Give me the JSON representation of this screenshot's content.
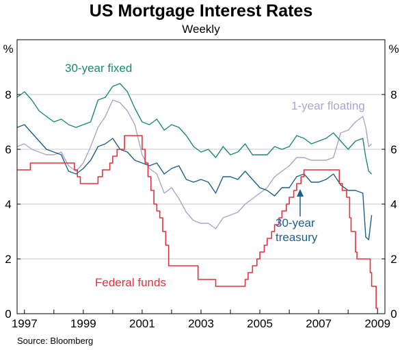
{
  "title": "US Mortgage Interest Rates",
  "subtitle": "Weekly",
  "source": "Source: Bloomberg",
  "chart_data": {
    "type": "line",
    "title": "US Mortgage Interest Rates",
    "subtitle": "Weekly",
    "y_unit_left": "%",
    "y_unit_right": "%",
    "xlim": [
      1996.75,
      2009.25
    ],
    "ylim": [
      0,
      10
    ],
    "x_ticks": [
      "1997",
      "1999",
      "2001",
      "2003",
      "2005",
      "2007",
      "2009"
    ],
    "y_ticks": [
      "0",
      "2",
      "4",
      "6",
      "8"
    ],
    "grid": "horizontal",
    "series": [
      {
        "name": "30-year fixed",
        "color": "#1a8a6e",
        "label_style": "text",
        "x": [
          1996.75,
          1997.0,
          1997.25,
          1997.5,
          1997.75,
          1998.0,
          1998.25,
          1998.5,
          1998.75,
          1999.0,
          1999.25,
          1999.5,
          1999.75,
          2000.0,
          2000.25,
          2000.5,
          2000.75,
          2001.0,
          2001.25,
          2001.5,
          2001.75,
          2002.0,
          2002.25,
          2002.5,
          2002.75,
          2003.0,
          2003.25,
          2003.5,
          2003.75,
          2004.0,
          2004.25,
          2004.5,
          2004.75,
          2005.0,
          2005.25,
          2005.5,
          2005.75,
          2006.0,
          2006.25,
          2006.5,
          2006.75,
          2007.0,
          2007.25,
          2007.5,
          2007.75,
          2008.0,
          2008.25,
          2008.5,
          2008.6,
          2008.7,
          2008.8
        ],
        "y": [
          7.9,
          8.1,
          7.8,
          7.4,
          7.2,
          7.0,
          7.1,
          6.9,
          6.8,
          6.9,
          7.0,
          7.8,
          7.9,
          8.3,
          8.4,
          8.1,
          7.5,
          7.0,
          6.9,
          7.1,
          6.7,
          6.9,
          6.8,
          6.5,
          6.1,
          5.9,
          6.0,
          5.7,
          6.1,
          5.8,
          5.9,
          6.2,
          5.8,
          5.8,
          5.8,
          6.1,
          6.0,
          6.1,
          6.5,
          6.4,
          6.2,
          6.3,
          6.4,
          6.6,
          6.3,
          6.0,
          6.3,
          6.4,
          5.7,
          5.2,
          5.1
        ]
      },
      {
        "name": "1-year floating",
        "color": "#a9a4cf",
        "label_style": "text",
        "x": [
          1996.75,
          1997.0,
          1997.25,
          1997.5,
          1997.75,
          1998.0,
          1998.25,
          1998.5,
          1998.75,
          1999.0,
          1999.25,
          1999.5,
          1999.75,
          2000.0,
          2000.25,
          2000.5,
          2000.75,
          2001.0,
          2001.25,
          2001.5,
          2001.75,
          2002.0,
          2002.25,
          2002.5,
          2002.75,
          2003.0,
          2003.25,
          2003.5,
          2003.75,
          2004.0,
          2004.25,
          2004.5,
          2004.75,
          2005.0,
          2005.25,
          2005.5,
          2005.75,
          2006.0,
          2006.25,
          2006.5,
          2006.75,
          2007.0,
          2007.25,
          2007.5,
          2007.75,
          2008.0,
          2008.25,
          2008.5,
          2008.6,
          2008.7,
          2008.8
        ],
        "y": [
          6.1,
          6.2,
          6.0,
          5.9,
          5.8,
          5.8,
          5.9,
          5.4,
          5.2,
          5.5,
          6.1,
          6.8,
          7.2,
          7.8,
          7.7,
          7.4,
          6.9,
          5.8,
          5.3,
          5.1,
          4.4,
          4.6,
          4.2,
          3.7,
          3.4,
          3.3,
          3.3,
          3.1,
          3.5,
          3.6,
          3.7,
          4.0,
          4.2,
          4.4,
          4.6,
          5.0,
          5.2,
          5.4,
          5.7,
          5.7,
          5.6,
          5.6,
          5.6,
          5.7,
          6.6,
          6.7,
          7.0,
          7.2,
          6.8,
          6.1,
          6.2
        ]
      },
      {
        "name": "30-year treasury",
        "color": "#1a5f8e",
        "label_style": "arrow",
        "x": [
          1996.75,
          1997.0,
          1997.25,
          1997.5,
          1997.75,
          1998.0,
          1998.25,
          1998.5,
          1998.75,
          1999.0,
          1999.25,
          1999.5,
          1999.75,
          2000.0,
          2000.25,
          2000.5,
          2000.75,
          2001.0,
          2001.25,
          2001.5,
          2001.75,
          2002.0,
          2002.25,
          2002.5,
          2002.75,
          2003.0,
          2003.25,
          2003.5,
          2003.75,
          2004.0,
          2004.25,
          2004.5,
          2004.75,
          2005.0,
          2005.25,
          2005.5,
          2005.75,
          2006.0,
          2006.25,
          2006.5,
          2006.75,
          2007.0,
          2007.25,
          2007.5,
          2007.75,
          2008.0,
          2008.25,
          2008.5,
          2008.6,
          2008.7,
          2008.8
        ],
        "y": [
          6.8,
          6.9,
          6.6,
          6.3,
          6.0,
          5.9,
          5.8,
          5.2,
          5.1,
          5.3,
          5.6,
          6.1,
          6.2,
          6.4,
          6.0,
          5.9,
          5.6,
          5.5,
          5.4,
          5.5,
          5.1,
          5.3,
          5.4,
          4.9,
          4.8,
          4.9,
          4.8,
          4.4,
          5.0,
          5.0,
          4.9,
          5.2,
          4.9,
          4.6,
          4.5,
          4.3,
          4.6,
          4.6,
          5.0,
          5.1,
          4.8,
          4.8,
          4.9,
          5.1,
          4.7,
          4.5,
          4.5,
          4.4,
          2.8,
          2.7,
          3.6
        ]
      },
      {
        "name": "Federal funds",
        "color": "#e0323e",
        "label_style": "text",
        "step": true,
        "x": [
          1996.75,
          1997.2,
          1998.7,
          1998.8,
          1998.9,
          1999.5,
          1999.65,
          1999.9,
          2000.0,
          2000.15,
          2000.4,
          2001.0,
          2001.1,
          2001.2,
          2001.3,
          2001.4,
          2001.5,
          2001.6,
          2001.7,
          2001.8,
          2001.9,
          2002.9,
          2003.5,
          2004.5,
          2004.6,
          2004.75,
          2004.9,
          2005.0,
          2005.15,
          2005.25,
          2005.4,
          2005.5,
          2005.65,
          2005.75,
          2005.9,
          2006.0,
          2006.15,
          2006.25,
          2006.4,
          2006.5,
          2007.7,
          2007.8,
          2007.95,
          2008.05,
          2008.1,
          2008.25,
          2008.3,
          2008.75,
          2008.8,
          2008.95,
          2009.0
        ],
        "y": [
          5.25,
          5.5,
          5.25,
          5.0,
          4.75,
          5.0,
          5.25,
          5.5,
          5.75,
          6.0,
          6.5,
          6.0,
          5.5,
          5.0,
          4.5,
          4.0,
          3.75,
          3.5,
          3.0,
          2.5,
          1.75,
          1.25,
          1.0,
          1.25,
          1.5,
          1.75,
          2.0,
          2.25,
          2.5,
          2.75,
          3.0,
          3.25,
          3.5,
          3.75,
          4.0,
          4.25,
          4.5,
          4.75,
          5.0,
          5.25,
          4.75,
          4.5,
          4.25,
          3.5,
          3.0,
          2.25,
          2.0,
          1.5,
          1.0,
          0.2,
          0.15
        ]
      }
    ],
    "annotations": [
      {
        "text": "30-year fixed",
        "series": "30-year fixed"
      },
      {
        "text": "1-year floating",
        "series": "1-year floating"
      },
      {
        "text": "30-year treasury",
        "series": "30-year treasury"
      },
      {
        "text": "Federal funds",
        "series": "Federal funds"
      }
    ]
  }
}
